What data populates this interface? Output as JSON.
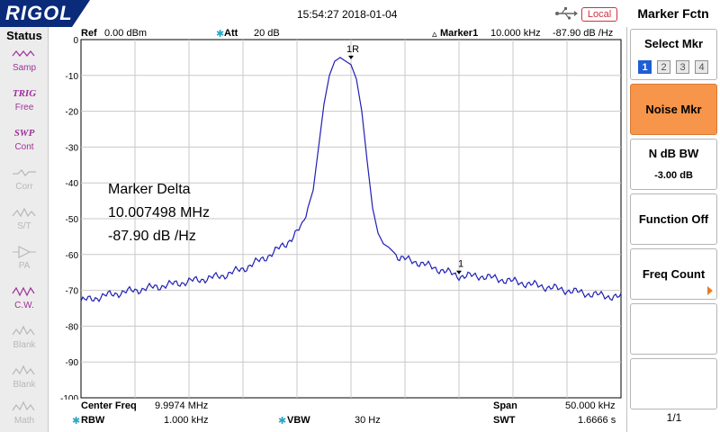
{
  "topbar": {
    "brand": "RIGOL",
    "datetime": "15:54:27 2018-01-04",
    "remote_status": "Local",
    "menu_title": "Marker Fctn",
    "usb_icon": "usb-icon"
  },
  "status_panel": {
    "title": "Status",
    "items": [
      {
        "label": "Samp",
        "icon": "wave-icon",
        "state": "active"
      },
      {
        "label": "Free",
        "word": "TRIG",
        "state": "active"
      },
      {
        "label": "Cont",
        "word": "SWP",
        "state": "active"
      },
      {
        "label": "Corr",
        "icon": "corr-icon",
        "state": "dim"
      },
      {
        "label": "S/T",
        "icon": "wave-icon",
        "state": "dim"
      },
      {
        "label": "PA",
        "icon": "pa-icon",
        "state": "dim"
      },
      {
        "label": "C.W.",
        "icon": "wave-icon",
        "state": "active"
      },
      {
        "label": "Blank",
        "icon": "wave-icon",
        "state": "dim"
      },
      {
        "label": "Blank",
        "icon": "wave-icon",
        "state": "dim"
      },
      {
        "label": "Math",
        "icon": "wave-icon",
        "state": "dim"
      }
    ]
  },
  "header": {
    "ref_label": "Ref",
    "ref_value": "0.00 dBm",
    "att_label": "Att",
    "att_value": "20 dB",
    "marker_label": "Marker1",
    "marker_freq": "10.000 kHz",
    "marker_level": "-87.90 dB /Hz"
  },
  "chart_data": {
    "type": "line",
    "y_ticks": [
      "0",
      "-10",
      "-20",
      "-30",
      "-40",
      "-50",
      "-60",
      "-70",
      "-80",
      "-90",
      "-100"
    ],
    "ylim": [
      -100,
      0
    ],
    "xlim": [
      -25,
      25
    ],
    "x_unit": "kHz offset from center",
    "grid": true,
    "trace_color": "#1f1fb4",
    "series": [
      {
        "x": [
          -25,
          -22,
          -20,
          -18,
          -16,
          -14,
          -12,
          -10,
          -8,
          -6,
          -4.5,
          -3.5,
          -3,
          -2.5,
          -2,
          -1.5,
          -1,
          -0.5,
          0,
          0.5,
          1,
          1.5,
          2,
          2.5,
          3,
          3.5,
          4.5,
          6,
          8,
          10,
          12,
          14,
          16,
          18,
          20,
          22,
          25
        ],
        "y": [
          -73,
          -71,
          -70,
          -69,
          -68,
          -67,
          -66,
          -64,
          -61,
          -57,
          -52,
          -42,
          -30,
          -18,
          -10,
          -6,
          -5,
          -6,
          -7,
          -11,
          -20,
          -34,
          -47,
          -54,
          -57,
          -58,
          -61,
          -62,
          -64,
          -66,
          -66,
          -67,
          -68,
          -69,
          -70,
          -71,
          -72
        ]
      }
    ],
    "markers": [
      {
        "label": "1R",
        "x": 0,
        "y": -5
      },
      {
        "label": "1",
        "x": 10,
        "y": -65
      }
    ]
  },
  "overlay": {
    "title": "Marker Delta",
    "freq": "10.007498 MHz",
    "level": "-87.90 dB /Hz"
  },
  "footer": {
    "center_label": "Center Freq",
    "center_value": "9.9974 MHz",
    "span_label": "Span",
    "span_value": "50.000 kHz",
    "rbw_label": "RBW",
    "rbw_value": "1.000 kHz",
    "vbw_label": "VBW",
    "vbw_value": "30 Hz",
    "swt_label": "SWT",
    "swt_value": "1.6666 s"
  },
  "softkeys": {
    "select_mkr": {
      "label": "Select Mkr",
      "options": [
        "1",
        "2",
        "3",
        "4"
      ],
      "selected": "1"
    },
    "noise_mkr": {
      "label": "Noise Mkr"
    },
    "ndb_bw": {
      "label": "N dB BW",
      "value": "-3.00 dB"
    },
    "function_off": {
      "label": "Function Off"
    },
    "freq_count": {
      "label": "Freq Count"
    },
    "page": "1/1",
    "accent_color": "#f7954a"
  }
}
